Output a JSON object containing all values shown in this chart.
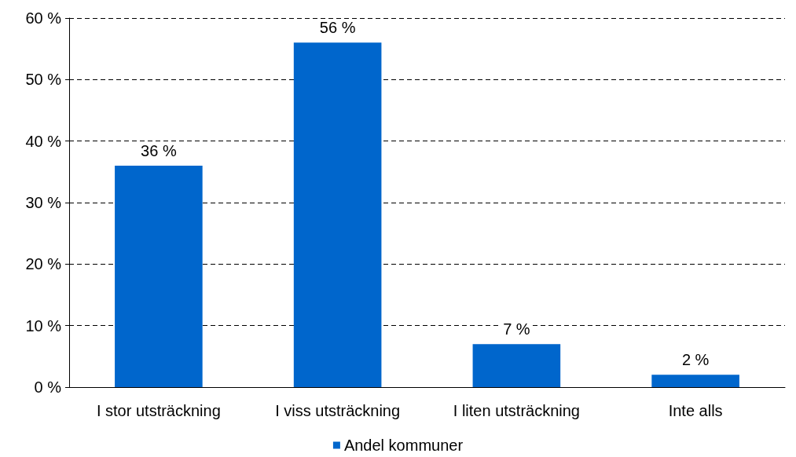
{
  "chart_data": {
    "type": "bar",
    "categories": [
      "I stor utsträckning",
      "I viss utsträckning",
      "I liten utsträckning",
      "Inte alls"
    ],
    "series": [
      {
        "name": "Andel kommuner",
        "color": "#0066cc",
        "values": [
          36,
          56,
          7,
          2
        ]
      }
    ],
    "ylim": [
      0,
      60
    ],
    "yticks": [
      {
        "value": 0,
        "label": "0 %"
      },
      {
        "value": 10,
        "label": "10 %"
      },
      {
        "value": 20,
        "label": "20 %"
      },
      {
        "value": 30,
        "label": "30 %"
      },
      {
        "value": 40,
        "label": "40 %"
      },
      {
        "value": 50,
        "label": "50 %"
      },
      {
        "value": 60,
        "label": "60 %"
      }
    ],
    "value_labels": [
      "36 %",
      "56 %",
      "7 %",
      "2 %"
    ],
    "grid": "y",
    "legend": "bottom"
  }
}
